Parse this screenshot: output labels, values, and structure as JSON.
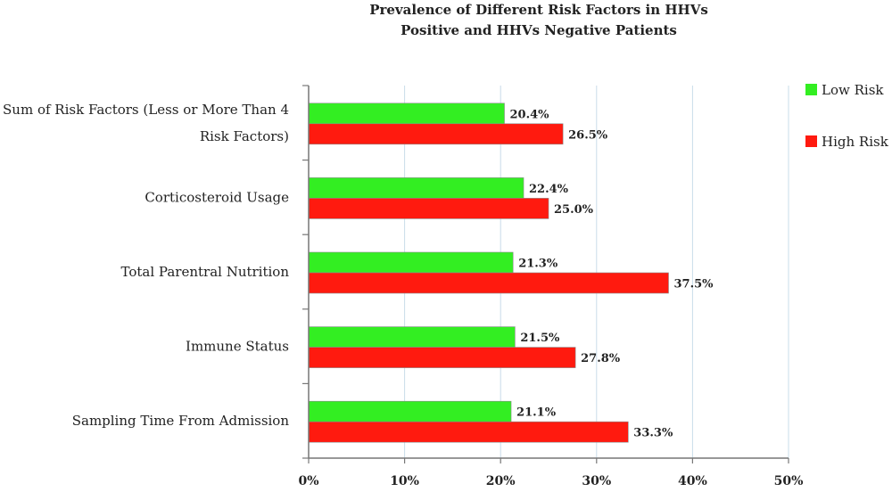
{
  "chart_data": {
    "type": "bar",
    "orientation": "horizontal",
    "title": [
      "Prevalence of Different Risk Factors in HHVs",
      "Positive and HHVs Negative Patients"
    ],
    "categories": [
      [
        "Sum of Risk Factors (Less or More Than 4",
        "Risk Factors)"
      ],
      [
        "Corticosteroid Usage"
      ],
      [
        "Total Parentral Nutrition"
      ],
      [
        "Immune Status"
      ],
      [
        "Sampling Time From Admission"
      ]
    ],
    "series": [
      {
        "name": "Low Risk",
        "color": "#33ee22",
        "values": [
          20.4,
          22.4,
          21.3,
          21.5,
          21.1
        ],
        "labels": [
          "20.4%",
          "22.4%",
          "21.3%",
          "21.5%",
          "21.1%"
        ]
      },
      {
        "name": "High Risk",
        "color": "#ff1a0f",
        "values": [
          26.5,
          25.0,
          37.5,
          27.8,
          33.3
        ],
        "labels": [
          "26.5%",
          "25.0%",
          "37.5%",
          "27.8%",
          "33.3%"
        ]
      }
    ],
    "xlim": [
      0,
      50
    ],
    "xticks": [
      "0%",
      "10%",
      "20%",
      "30%",
      "40%",
      "50%"
    ],
    "grid": true,
    "legend_position": "right",
    "grid_color": "#c9dce9",
    "bar_stroke": "#8a8a8a"
  }
}
